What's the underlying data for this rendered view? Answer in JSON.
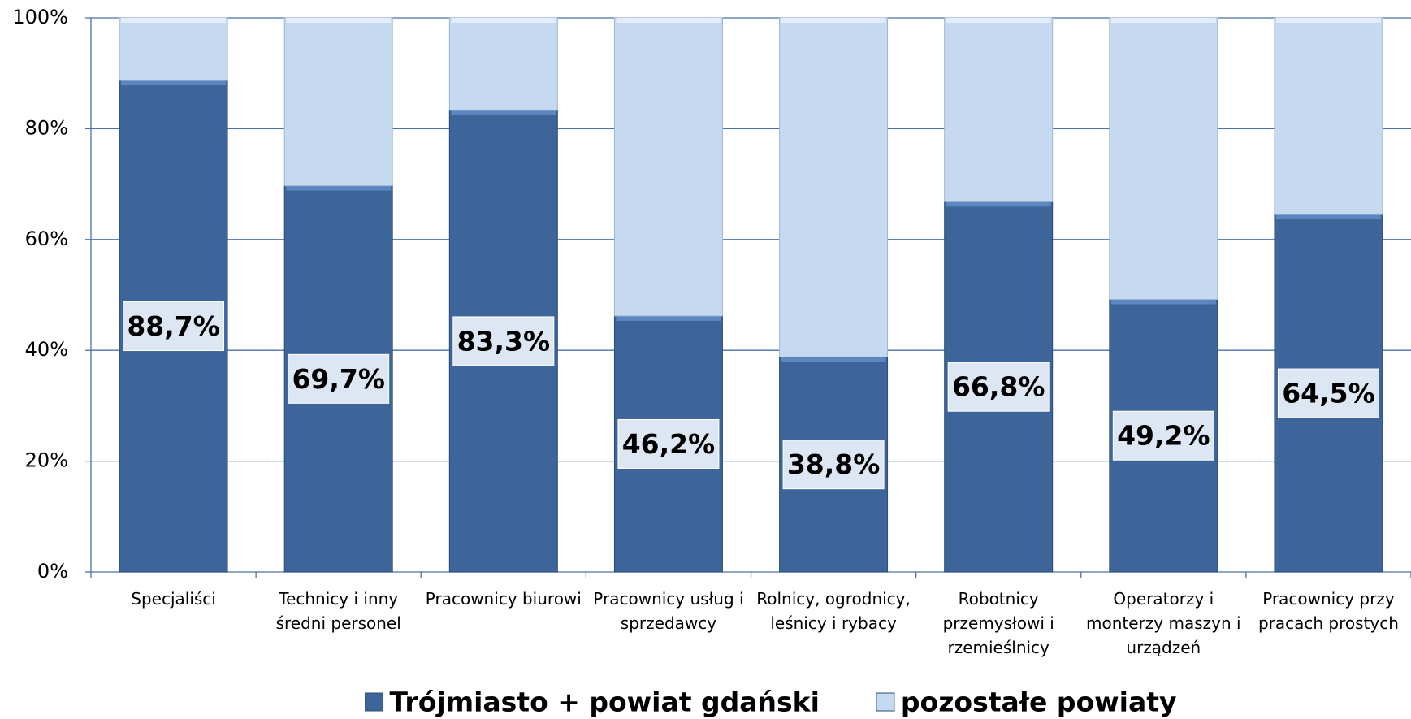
{
  "chart_data": {
    "type": "stacked_bar",
    "categories": [
      "Specjaliści",
      "Technicy i inny średni personel",
      "Pracownicy biurowi",
      "Pracownicy usług i sprzedawcy",
      "Rolnicy, ogrodnicy, leśnicy i rybacy",
      "Robotnicy przemysłowi i rzemieślnicy",
      "Operatorzy i monterzy maszyn i urządzeń",
      "Pracownicy przy pracach prostych"
    ],
    "series": [
      {
        "name": "Trójmiasto + powiat gdański",
        "color": "#3d6599",
        "values": [
          88.7,
          69.7,
          83.3,
          46.2,
          38.8,
          66.8,
          49.2,
          64.5
        ],
        "value_labels": [
          "88,7%",
          "69,7%",
          "83,3%",
          "46,2%",
          "38,8%",
          "66,8%",
          "49,2%",
          "64,5%"
        ]
      },
      {
        "name": "pozostałe powiaty",
        "color": "#c5d9f1",
        "values": [
          11.3,
          30.3,
          16.7,
          53.8,
          61.2,
          33.2,
          50.8,
          35.5
        ]
      }
    ],
    "ylim": [
      0,
      100
    ],
    "yticks": [
      {
        "value": 0,
        "label": "0%"
      },
      {
        "value": 20,
        "label": "20%"
      },
      {
        "value": 40,
        "label": "40%"
      },
      {
        "value": 60,
        "label": "60%"
      },
      {
        "value": 80,
        "label": "80%"
      },
      {
        "value": 100,
        "label": "100%"
      }
    ],
    "grid": true,
    "legend": "bottom"
  }
}
